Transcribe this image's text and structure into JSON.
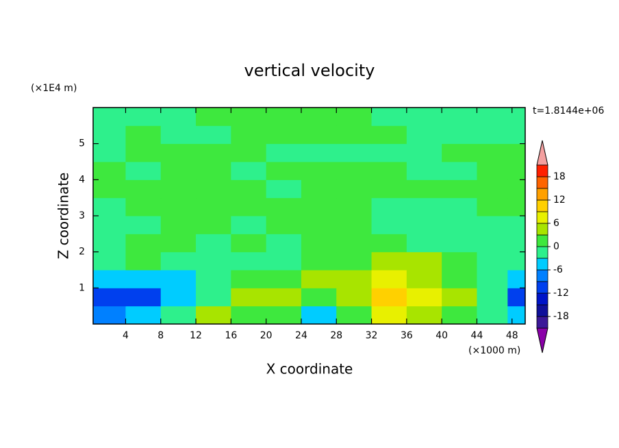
{
  "chart_data": {
    "type": "contour",
    "title": "vertical velocity",
    "x_label": "X coordinate",
    "y_label": "Z coordinate",
    "x_unit": "(×1000 m)",
    "y_unit": "(×1E4 m)",
    "annotation": "t=1.8144e+06",
    "xlim": [
      0.3,
      49.5
    ],
    "ylim": [
      0,
      6
    ],
    "xticks": [
      4,
      8,
      12,
      16,
      20,
      24,
      28,
      32,
      36,
      40,
      44,
      48
    ],
    "yticks": [
      1,
      2,
      3,
      4,
      5
    ],
    "x": [
      2,
      6,
      10,
      14,
      18,
      22,
      26,
      30,
      34,
      38,
      42,
      46,
      49
    ],
    "z": [
      0.25,
      0.75,
      1.25,
      1.75,
      2.25,
      2.75,
      3.25,
      3.75,
      4.25,
      4.75,
      5.25,
      5.75
    ],
    "values": [
      [
        -9,
        -6,
        -2,
        4,
        2,
        1,
        -4,
        2,
        6,
        4,
        2,
        -1,
        -6
      ],
      [
        -12,
        -12,
        -6,
        -1,
        5,
        3,
        1,
        4,
        9,
        8,
        4,
        -2,
        -10
      ],
      [
        -6,
        -6,
        -4,
        -1,
        1,
        2,
        3,
        5,
        7,
        5,
        2,
        -1,
        -4
      ],
      [
        -2,
        2,
        -2,
        -1,
        -1,
        -1,
        1,
        2,
        4,
        3,
        1,
        -2,
        -2
      ],
      [
        -1,
        1,
        1,
        -1,
        1,
        -1,
        1,
        1,
        1,
        -1,
        -1,
        -1,
        -1
      ],
      [
        -1,
        -1,
        1,
        1,
        -1,
        1,
        1,
        1,
        -1,
        -1,
        -1,
        -1,
        -1
      ],
      [
        -1,
        1,
        1,
        1,
        1,
        1,
        1,
        1,
        -1,
        -1,
        -1,
        1,
        1
      ],
      [
        1,
        1,
        1,
        1,
        1,
        -1,
        1,
        1,
        1,
        1,
        1,
        1,
        1
      ],
      [
        1,
        -1,
        1,
        1,
        -1,
        1,
        1,
        1,
        1,
        -1,
        -1,
        1,
        1
      ],
      [
        -1,
        1,
        1,
        1,
        1,
        -1,
        -1,
        -1,
        -1,
        -1,
        1,
        1,
        1
      ],
      [
        -1,
        1,
        -1,
        -1,
        1,
        1,
        1,
        1,
        1,
        -1,
        -1,
        -1,
        -1
      ],
      [
        -1,
        -1,
        -1,
        1,
        1,
        1,
        1,
        1,
        -1,
        -1,
        -1,
        -1,
        -1
      ]
    ],
    "levels": [
      -21,
      -18,
      -15,
      -12,
      -9,
      -6,
      -3,
      0,
      3,
      6,
      9,
      12,
      15,
      18,
      21
    ],
    "colors": [
      "#8a00a8",
      "#3c1898",
      "#10109a",
      "#0014c8",
      "#0040ee",
      "#0080ff",
      "#00ccff",
      "#2ef08c",
      "#3ee83e",
      "#a8e400",
      "#e8f000",
      "#ffd000",
      "#ffa000",
      "#ff6400",
      "#ff2000",
      "#f4a0a0"
    ],
    "colorbar_ticks": [
      -18,
      -12,
      -6,
      0,
      6,
      12,
      18
    ]
  }
}
